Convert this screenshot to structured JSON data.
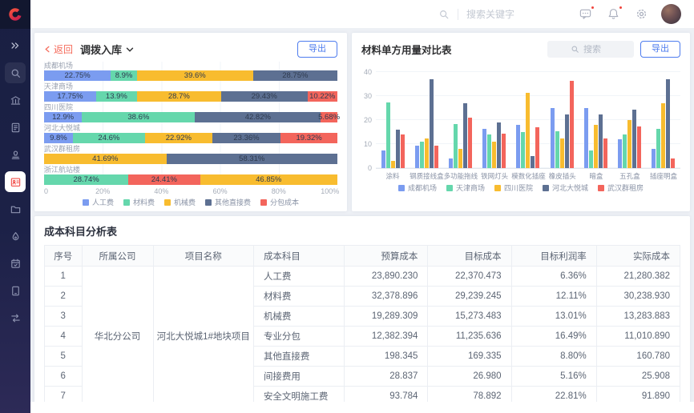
{
  "header": {
    "search_placeholder": "搜索关键字",
    "icons": [
      "search-icon",
      "chat-icon",
      "bell-icon",
      "gear-icon",
      "avatar"
    ]
  },
  "sidebar": {
    "icons": [
      "collapse-icon",
      "search-icon",
      "building-icon",
      "document-icon",
      "stamp-icon",
      "id-card-icon",
      "folder-icon",
      "drop-icon",
      "calendar-icon",
      "tablet-icon",
      "transfer-icon"
    ],
    "active_icon": "id-card-icon"
  },
  "left_card": {
    "back_label": "返回",
    "title": "调拨入库",
    "export_label": "导出"
  },
  "right_card": {
    "title": "材料单方用量对比表",
    "search_placeholder": "搜索",
    "export_label": "导出"
  },
  "chart_data": [
    {
      "type": "bar",
      "orientation": "horizontal-stacked",
      "unit": "%",
      "x_ticks": [
        "0",
        "20%",
        "40%",
        "60%",
        "80%",
        "100%"
      ],
      "series_order": [
        "人工费",
        "材料费",
        "机械费",
        "其他直接费",
        "分包成本"
      ],
      "colors": {
        "人工费": "#7B9CF0",
        "材料费": "#65D7AC",
        "机械费": "#F8BC2F",
        "其他直接费": "#5D7092",
        "分包成本": "#F3655C"
      },
      "legend_position": "bottom",
      "rows": [
        {
          "label": "成都机场",
          "segments": [
            {
              "series": "人工费",
              "value": 22.75
            },
            {
              "series": "材料费",
              "value": 8.9
            },
            {
              "series": "机械费",
              "value": 39.6
            },
            {
              "series": "其他直接费",
              "value": 28.75
            }
          ]
        },
        {
          "label": "天津商场",
          "segments": [
            {
              "series": "人工费",
              "value": 17.75
            },
            {
              "series": "材料费",
              "value": 13.9
            },
            {
              "series": "机械费",
              "value": 28.7
            },
            {
              "series": "其他直接费",
              "value": 29.43
            },
            {
              "series": "分包成本",
              "value": 10.22
            }
          ]
        },
        {
          "label": "四川医院",
          "segments": [
            {
              "series": "人工费",
              "value": 12.9
            },
            {
              "series": "材料费",
              "value": 38.6
            },
            {
              "series": "其他直接费",
              "value": 42.82
            },
            {
              "series": "分包成本",
              "value": 5.68
            }
          ]
        },
        {
          "label": "河北大悦城",
          "segments": [
            {
              "series": "人工费",
              "value": 9.8
            },
            {
              "series": "材料费",
              "value": 24.6
            },
            {
              "series": "机械费",
              "value": 22.92
            },
            {
              "series": "其他直接费",
              "value": 23.36
            },
            {
              "series": "分包成本",
              "value": 19.32
            }
          ]
        },
        {
          "label": "武汉群租房",
          "segments": [
            {
              "series": "机械费",
              "value": 41.69
            },
            {
              "series": "其他直接费",
              "value": 58.31
            }
          ]
        },
        {
          "label": "浙江航站楼",
          "segments": [
            {
              "series": "材料费",
              "value": 28.74
            },
            {
              "series": "分包成本",
              "value": 24.41
            },
            {
              "series": "机械费",
              "value": 46.85
            }
          ]
        }
      ]
    },
    {
      "type": "bar",
      "orientation": "vertical-grouped",
      "title": "材料单方用量对比表",
      "ylim": [
        0,
        40
      ],
      "y_ticks": [
        0,
        10,
        20,
        30,
        40
      ],
      "grid": true,
      "legend_position": "bottom",
      "categories": [
        "涂料",
        "钢质接线盒",
        "多功能拖线",
        "铁网灯头",
        "模数化插座",
        "橡皮插头",
        "暗盒",
        "五孔盒",
        "插座明盒"
      ],
      "colors": {
        "成都机场": "#7B9CF0",
        "天津商场": "#65D7AC",
        "四川医院": "#F8BC2F",
        "河北大悦城": "#5D7092",
        "武汉群租房": "#F3655C"
      },
      "series": [
        {
          "name": "成都机场",
          "values": [
            7.5,
            9.5,
            4,
            16.5,
            18,
            25,
            25,
            12,
            8
          ]
        },
        {
          "name": "天津商场",
          "values": [
            27.5,
            11,
            18.5,
            14,
            15,
            15.5,
            7.5,
            14,
            16.5
          ]
        },
        {
          "name": "四川医院",
          "values": [
            3,
            12.5,
            8,
            11,
            31.5,
            12.5,
            18,
            20,
            27
          ]
        },
        {
          "name": "河北大悦城",
          "values": [
            16,
            37,
            27,
            19,
            5,
            22.5,
            22.5,
            24.5,
            37
          ]
        },
        {
          "name": "武汉群租房",
          "values": [
            14,
            9.5,
            21,
            14.5,
            17,
            36.5,
            12.5,
            17.5,
            4
          ]
        }
      ]
    }
  ],
  "table": {
    "title": "成本科目分析表",
    "columns": [
      "序号",
      "所属公司",
      "项目名称",
      "成本科目",
      "预算成本",
      "目标成本",
      "目标利润率",
      "实际成本"
    ],
    "merged": {
      "company": "华北分公司",
      "project": "河北大悦城1#地块项目"
    },
    "rows": [
      {
        "no": "1",
        "subject": "人工费",
        "budget": "23,890.230",
        "target": "22,370.473",
        "margin": "6.36%",
        "actual": "21,280.382"
      },
      {
        "no": "2",
        "subject": "材料费",
        "budget": "32,378.896",
        "target": "29,239.245",
        "margin": "12.11%",
        "actual": "30,238.930"
      },
      {
        "no": "3",
        "subject": "机械费",
        "budget": "19,289.309",
        "target": "15,273.483",
        "margin": "13.01%",
        "actual": "13,283.883"
      },
      {
        "no": "4",
        "subject": "专业分包",
        "budget": "12,382.394",
        "target": "11,235.636",
        "margin": "16.49%",
        "actual": "11,010.890"
      },
      {
        "no": "5",
        "subject": "其他直接费",
        "budget": "198.345",
        "target": "169.335",
        "margin": "8.80%",
        "actual": "160.780"
      },
      {
        "no": "6",
        "subject": "间接费用",
        "budget": "28.837",
        "target": "26.980",
        "margin": "5.16%",
        "actual": "25.908"
      },
      {
        "no": "7",
        "subject": "安全文明施工费",
        "budget": "93.784",
        "target": "78.892",
        "margin": "22.81%",
        "actual": "91.890"
      }
    ]
  }
}
